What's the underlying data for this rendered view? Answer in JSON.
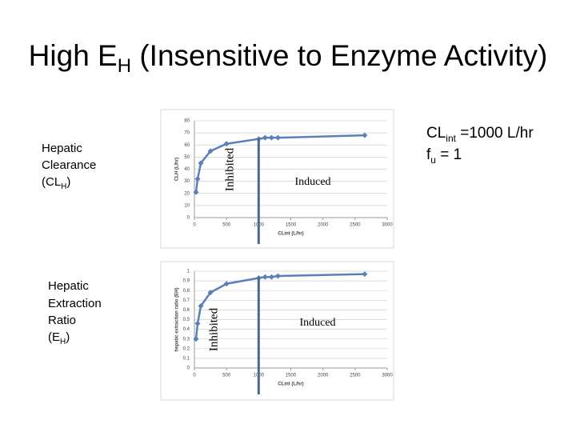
{
  "slide": {
    "title": [
      "High E",
      "H",
      " (Insensitive to Enzyme Activity)"
    ],
    "clearance_label": [
      "Hepatic",
      "Clearance",
      "(CL",
      "H",
      ")"
    ],
    "extraction_label": [
      "Hepatic",
      "Extraction",
      "Ratio",
      "(E",
      "H",
      ")"
    ],
    "note": [
      "CL",
      "int",
      " =1000 L/hr",
      "f",
      "u",
      " = 1"
    ]
  },
  "chart_data": [
    {
      "type": "line",
      "x_label": "CLint (L/hr)",
      "y_label": "CLH (L/hr)",
      "x": [
        25,
        50,
        100,
        250,
        500,
        1000,
        1100,
        1200,
        1300,
        2650
      ],
      "series": [
        {
          "name": "CLH",
          "color": "#5b7fb8",
          "values": [
            21,
            32,
            45,
            55,
            61,
            65,
            66,
            66,
            66,
            68
          ]
        }
      ],
      "xlim": [
        0,
        3000
      ],
      "xticks": [
        0,
        500,
        1000,
        1500,
        2000,
        2500,
        3000
      ],
      "ylim": [
        0,
        80
      ],
      "yticks": [
        0,
        10,
        20,
        30,
        40,
        50,
        60,
        70,
        80
      ],
      "grid": true,
      "reference_x": 1000,
      "annotations": [
        "Inhibited",
        "Induced"
      ]
    },
    {
      "type": "line",
      "x_label": "CLint (L/hr)",
      "y_label": "hepatic extraction ratio (EH)",
      "x": [
        25,
        50,
        100,
        250,
        500,
        1000,
        1100,
        1200,
        1300,
        2650
      ],
      "series": [
        {
          "name": "EH",
          "color": "#5b7fb8",
          "values": [
            0.3,
            0.46,
            0.64,
            0.78,
            0.87,
            0.93,
            0.94,
            0.94,
            0.95,
            0.97
          ]
        }
      ],
      "xlim": [
        0,
        3000
      ],
      "xticks": [
        0,
        500,
        1000,
        1500,
        2000,
        2500,
        3000
      ],
      "ylim": [
        0,
        1
      ],
      "yticks": [
        0,
        0.1,
        0.2,
        0.3,
        0.4,
        0.5,
        0.6,
        0.7,
        0.8,
        0.9,
        1
      ],
      "grid": true,
      "reference_x": 1000,
      "annotations": [
        "Inhibited",
        "Induced"
      ]
    }
  ]
}
